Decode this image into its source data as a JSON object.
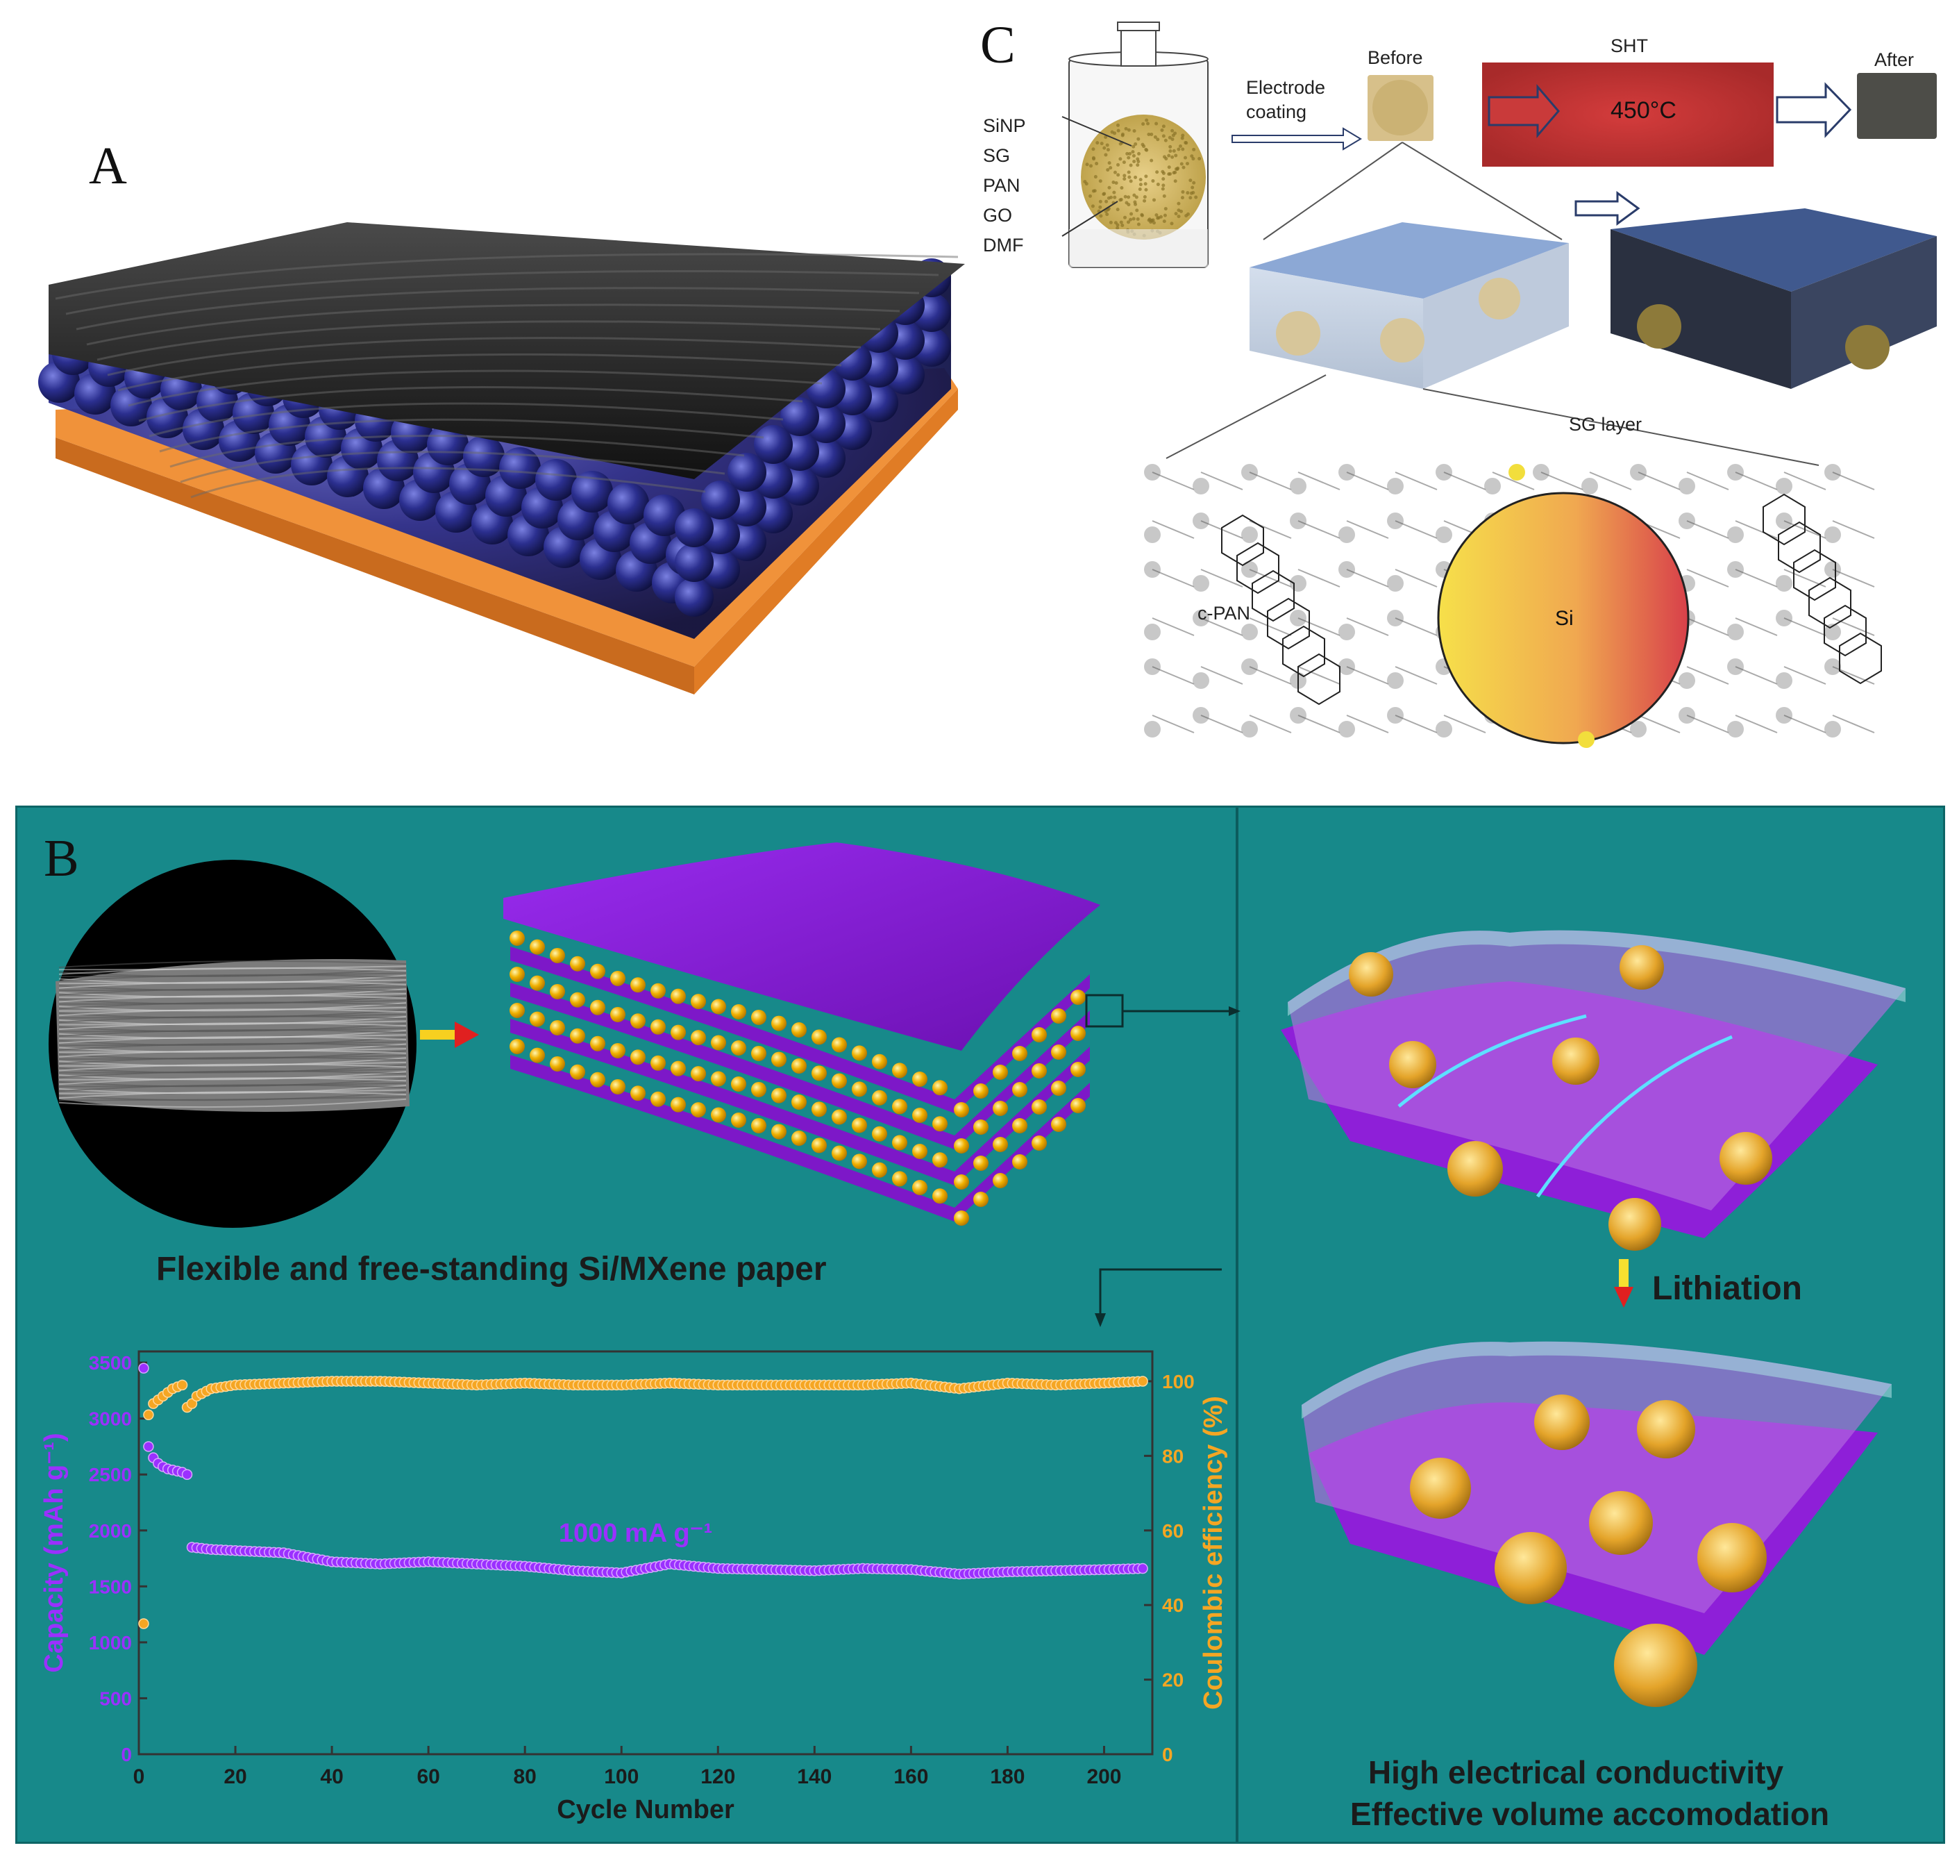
{
  "panels": {
    "A": {
      "letter": "A"
    },
    "B": {
      "letter": "B",
      "caption": "Flexible and free-standing Si/MXene paper",
      "lithiation": "Lithiation",
      "bottom_text": [
        "High electrical conductivity",
        "Effective volume accomodation"
      ]
    },
    "C": {
      "letter": "C",
      "mixture": [
        "SiNP",
        "SG",
        "PAN",
        "GO",
        "DMF"
      ],
      "electrode_coating": [
        "Electrode",
        "coating"
      ],
      "before": "Before",
      "after": "After",
      "sht": "SHT",
      "temperature": "450°C",
      "sg_layer": "SG layer",
      "c_pan": "c-PAN",
      "si": "Si"
    }
  },
  "chart_data": {
    "type": "scatter",
    "annotation": "1000 mA g⁻¹",
    "xlabel": "Cycle Number",
    "ylabel_left": "Capacity (mAh g⁻¹)",
    "ylabel_right": "Coulombic efficiency (%)",
    "xlim": [
      0,
      210
    ],
    "ylim_left": [
      0,
      3600
    ],
    "ylim_right": [
      0,
      108
    ],
    "xticks": [
      0,
      20,
      40,
      60,
      80,
      100,
      120,
      140,
      160,
      180,
      200
    ],
    "yticks_left": [
      0,
      500,
      1000,
      1500,
      2000,
      2500,
      3000,
      3500
    ],
    "yticks_right": [
      0,
      20,
      40,
      60,
      80,
      100
    ],
    "series": [
      {
        "axis": "left",
        "color": "#9b30ff",
        "points": [
          [
            1,
            3450
          ],
          [
            2,
            2750
          ],
          [
            3,
            2650
          ],
          [
            4,
            2600
          ],
          [
            5,
            2570
          ],
          [
            6,
            2550
          ],
          [
            7,
            2540
          ],
          [
            8,
            2530
          ],
          [
            9,
            2520
          ],
          [
            10,
            2500
          ],
          [
            11,
            1850
          ],
          [
            15,
            1830
          ],
          [
            20,
            1820
          ],
          [
            25,
            1810
          ],
          [
            30,
            1800
          ],
          [
            35,
            1760
          ],
          [
            40,
            1720
          ],
          [
            50,
            1700
          ],
          [
            60,
            1720
          ],
          [
            70,
            1700
          ],
          [
            80,
            1680
          ],
          [
            90,
            1640
          ],
          [
            100,
            1620
          ],
          [
            110,
            1700
          ],
          [
            120,
            1660
          ],
          [
            130,
            1650
          ],
          [
            140,
            1640
          ],
          [
            150,
            1660
          ],
          [
            160,
            1650
          ],
          [
            170,
            1610
          ],
          [
            180,
            1630
          ],
          [
            190,
            1640
          ],
          [
            200,
            1650
          ],
          [
            208,
            1660
          ]
        ]
      },
      {
        "axis": "right",
        "color": "#f5a623",
        "points": [
          [
            1,
            35
          ],
          [
            2,
            91
          ],
          [
            3,
            94
          ],
          [
            5,
            96
          ],
          [
            7,
            98
          ],
          [
            9,
            99
          ],
          [
            10,
            93
          ],
          [
            11,
            94
          ],
          [
            12,
            96
          ],
          [
            15,
            98
          ],
          [
            20,
            99
          ],
          [
            30,
            99.5
          ],
          [
            40,
            100
          ],
          [
            50,
            100
          ],
          [
            60,
            99.5
          ],
          [
            70,
            99
          ],
          [
            80,
            99.5
          ],
          [
            90,
            99
          ],
          [
            100,
            99
          ],
          [
            110,
            99.5
          ],
          [
            120,
            99
          ],
          [
            130,
            99
          ],
          [
            140,
            99
          ],
          [
            150,
            99
          ],
          [
            160,
            99.5
          ],
          [
            170,
            98
          ],
          [
            180,
            99.5
          ],
          [
            190,
            99
          ],
          [
            200,
            99.5
          ],
          [
            208,
            100
          ]
        ]
      }
    ]
  },
  "colors": {
    "teal_bg": "#17898a",
    "purple": "#8a1ed6",
    "gold": "#f0b000",
    "navy_sphere": "#2b2f8f",
    "copper": "#f0923a",
    "sht_red": "#c93a3a"
  }
}
